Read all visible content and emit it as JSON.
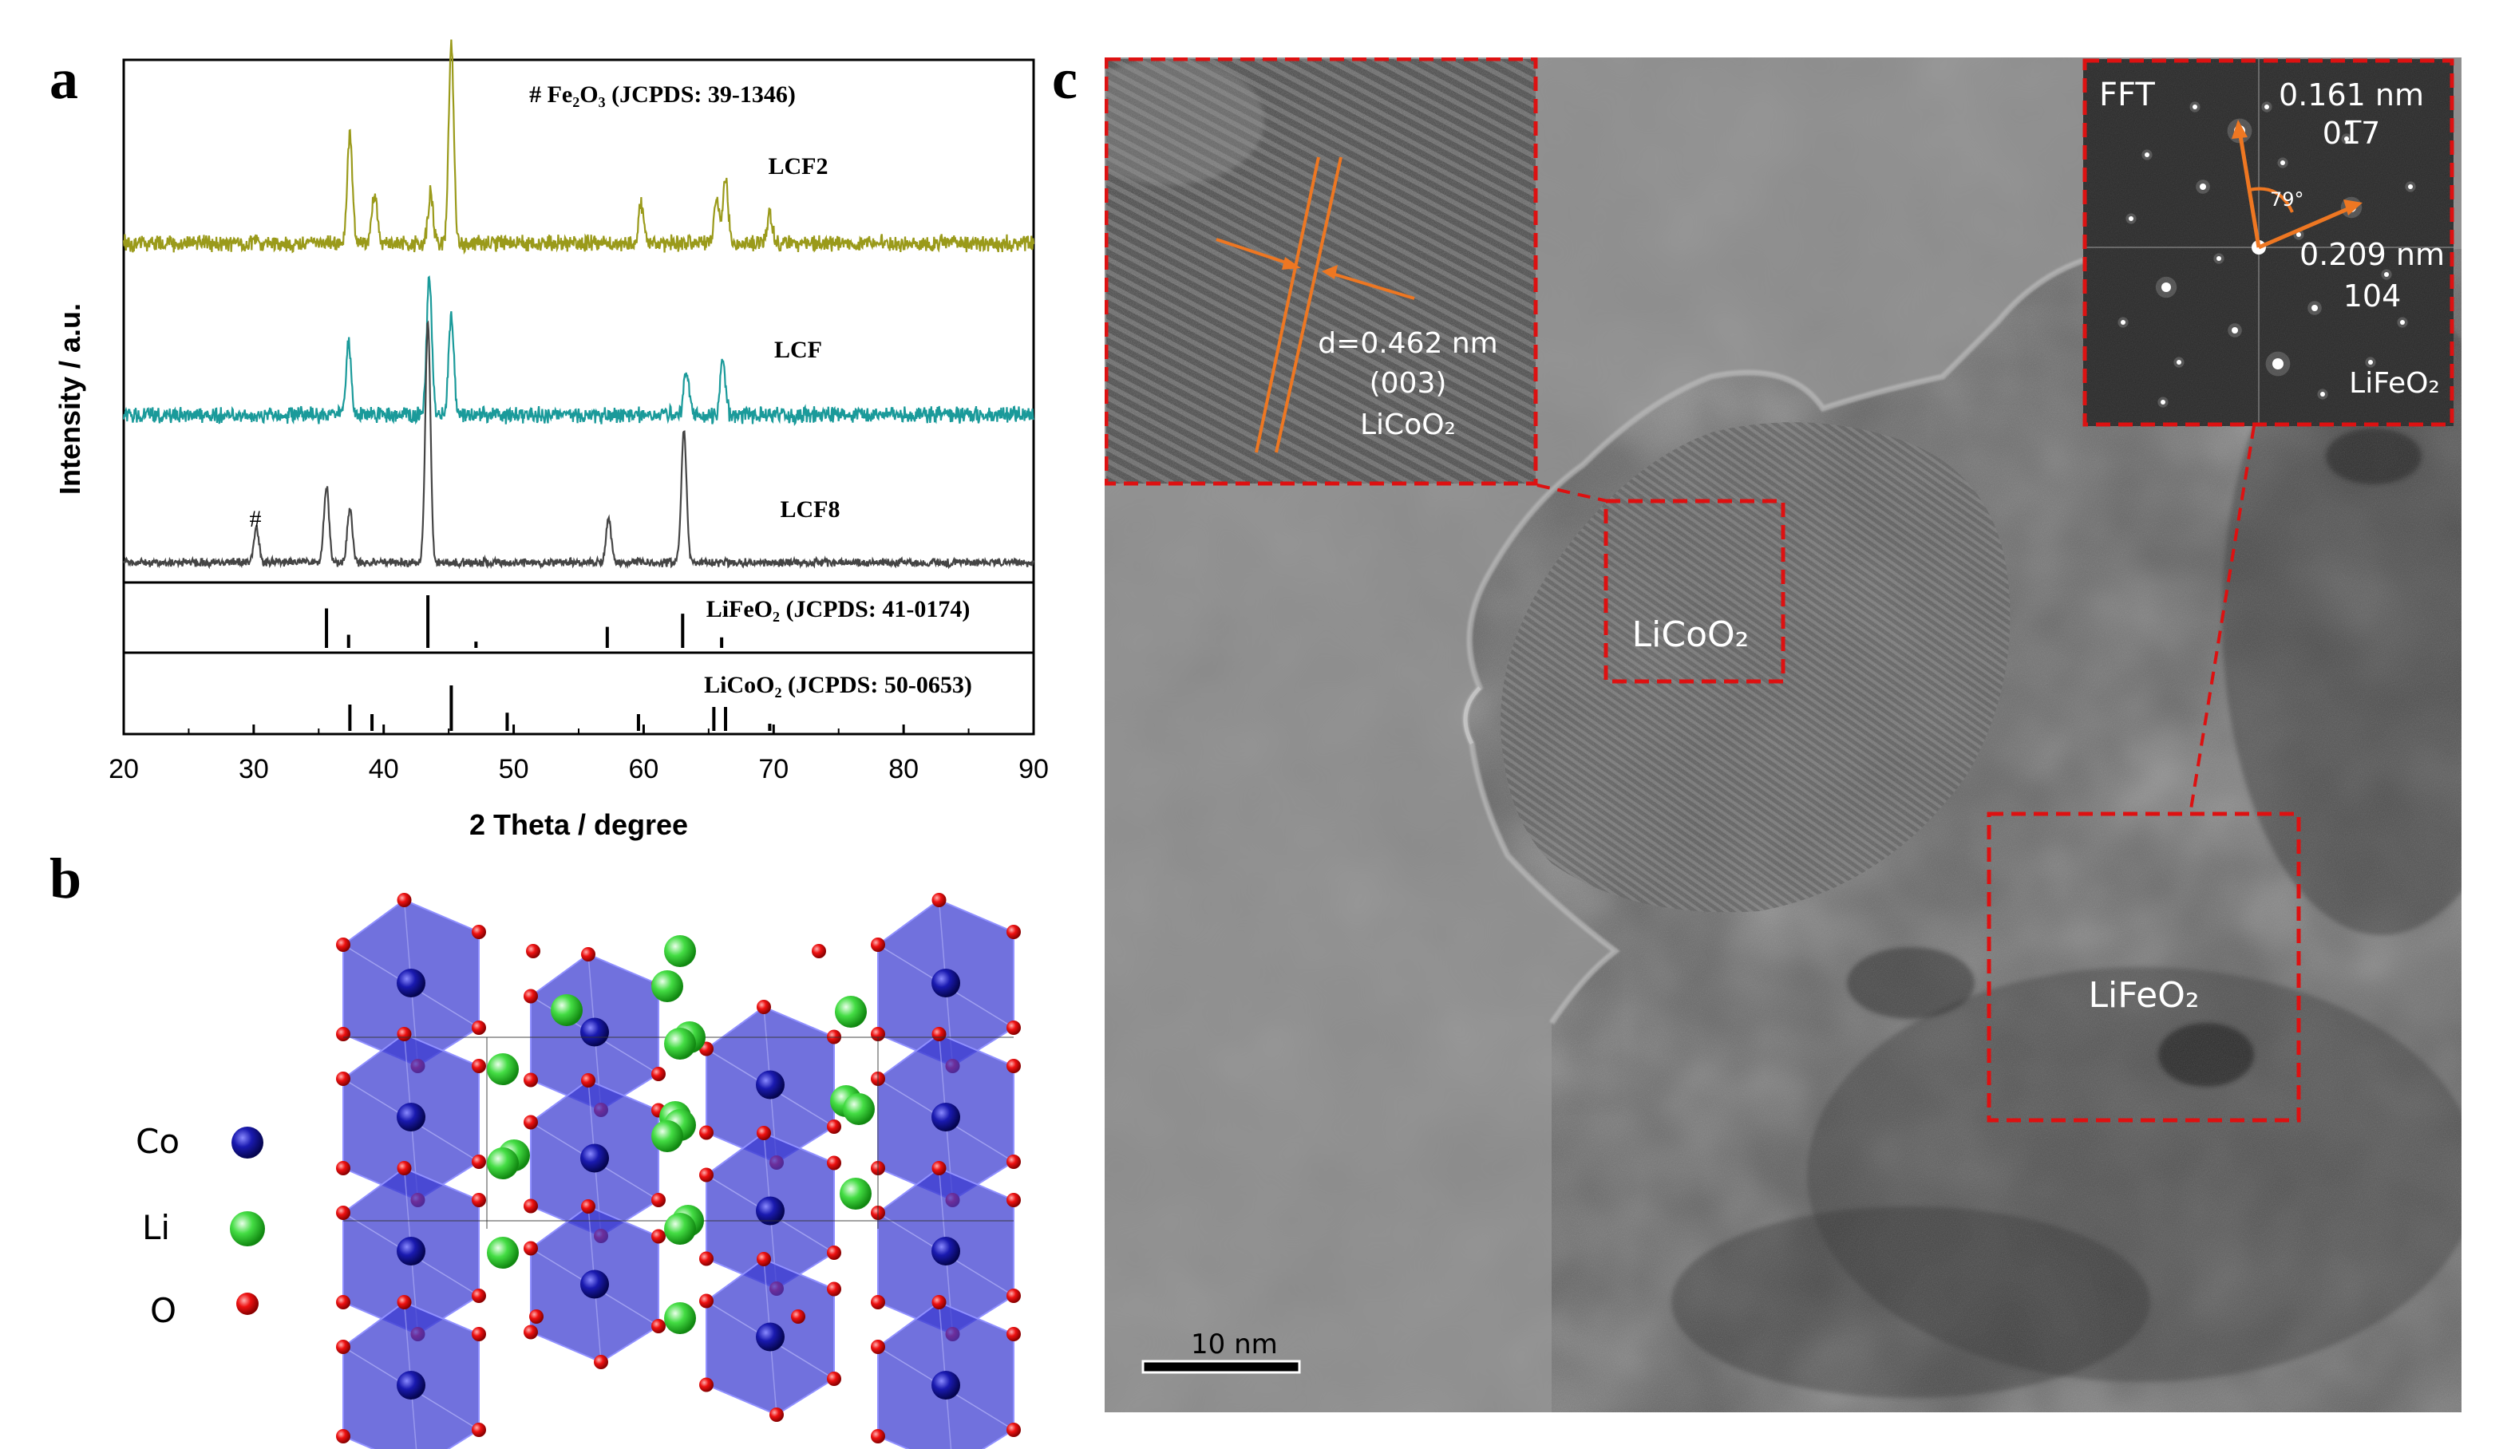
{
  "panel_labels": {
    "a": "a",
    "b": "b",
    "c": "c"
  },
  "chart_data": {
    "type": "line",
    "xlabel": "2 Theta / degree",
    "ylabel": "Intensity / a.u.",
    "xlim": [
      20,
      90
    ],
    "xticks": [
      20,
      30,
      40,
      50,
      60,
      70,
      80,
      90
    ],
    "top_note": "# Fe₂O₃ (JCPDS: 39-1346)",
    "series": [
      {
        "name": "LCF2",
        "color": "#9a9a1a",
        "peaks": [
          [
            37.4,
            0.55
          ],
          [
            39.3,
            0.25
          ],
          [
            43.6,
            0.25
          ],
          [
            45.2,
            1.0
          ],
          [
            59.8,
            0.2
          ],
          [
            65.6,
            0.22
          ],
          [
            66.3,
            0.32
          ],
          [
            69.7,
            0.15
          ]
        ]
      },
      {
        "name": "LCF",
        "color": "#1a9a9a",
        "peaks": [
          [
            37.3,
            0.4
          ],
          [
            43.5,
            0.75
          ],
          [
            45.2,
            0.55
          ],
          [
            63.3,
            0.25
          ],
          [
            66.1,
            0.3
          ]
        ]
      },
      {
        "name": "LCF8",
        "color": "#444444",
        "peaks": [
          [
            30.2,
            0.15
          ],
          [
            35.6,
            0.32
          ],
          [
            37.4,
            0.22
          ],
          [
            43.4,
            1.0
          ],
          [
            57.3,
            0.18
          ],
          [
            63.1,
            0.55
          ]
        ]
      }
    ],
    "reference_patterns": [
      {
        "name": "LiFeO₂ (JCPDS: 41-0174)",
        "lines": [
          [
            35.6,
            0.75
          ],
          [
            37.3,
            0.25
          ],
          [
            43.4,
            1.0
          ],
          [
            47.1,
            0.12
          ],
          [
            57.2,
            0.4
          ],
          [
            63.0,
            0.65
          ],
          [
            66.0,
            0.2
          ]
        ]
      },
      {
        "name": "LiCoO₂ (JCPDS: 50-0653)",
        "lines": [
          [
            37.4,
            0.55
          ],
          [
            39.1,
            0.35
          ],
          [
            45.2,
            0.95
          ],
          [
            49.5,
            0.38
          ],
          [
            59.6,
            0.35
          ],
          [
            65.4,
            0.5
          ],
          [
            66.3,
            0.5
          ],
          [
            69.7,
            0.15
          ]
        ]
      }
    ],
    "annotations": [
      "#"
    ]
  },
  "structure_legend": [
    {
      "label": "Co",
      "color": "#1a1aa0"
    },
    {
      "label": "Li",
      "color": "#33cc33"
    },
    {
      "label": "O",
      "color": "#dd1111"
    }
  ],
  "tem": {
    "inset_hrtem": {
      "spacing": "d=0.462 nm",
      "plane": "(003)",
      "phase": "LiCoO₂"
    },
    "fft": {
      "title": "FFT",
      "spacing1": "0.161 nm",
      "plane1": "01̅7",
      "angle": "79°",
      "spacing2": "0.209 nm",
      "plane2": "104",
      "phase": "LiFeO₂"
    },
    "region_labels": [
      "LiCoO₂",
      "LiFeO₂"
    ],
    "scale_bar": "10 nm",
    "accent_color": "#ee7722",
    "box_color": "#dd1111"
  }
}
